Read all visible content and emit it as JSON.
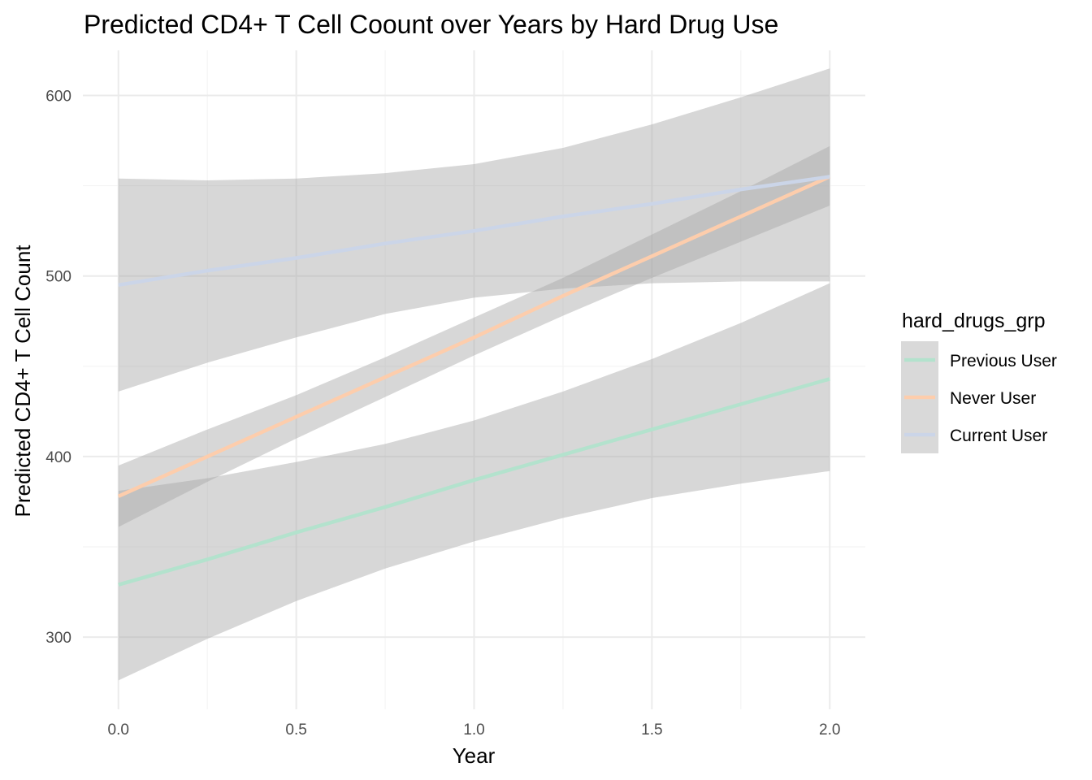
{
  "chart_data": {
    "type": "line",
    "title": "Predicted CD4+ T Cell Coount over Years by Hard Drug Use",
    "xlabel": "Year",
    "ylabel": "Predicted CD4+ T Cell Count",
    "xlim": [
      -0.1,
      2.1
    ],
    "ylim": [
      260,
      625
    ],
    "x_ticks": [
      0.0,
      0.5,
      1.0,
      1.5,
      2.0
    ],
    "x_tick_labels": [
      "0.0",
      "0.5",
      "1.0",
      "1.5",
      "2.0"
    ],
    "y_ticks": [
      300,
      400,
      500,
      600
    ],
    "y_tick_labels": [
      "300",
      "400",
      "500",
      "600"
    ],
    "grid": true,
    "legend": {
      "title": "hard_drugs_grp",
      "position": "right"
    },
    "x": [
      0,
      0.25,
      0.5,
      0.75,
      1.0,
      1.25,
      1.5,
      1.75,
      2.0
    ],
    "series": [
      {
        "name": "Previous User",
        "color": "#b3e2cd",
        "values": [
          329,
          343,
          358,
          372,
          387,
          401,
          415,
          429,
          443
        ],
        "lower": [
          276,
          299,
          320,
          338,
          353,
          366,
          377,
          385,
          392
        ],
        "upper": [
          381,
          388,
          397,
          407,
          420,
          436,
          454,
          474,
          496
        ]
      },
      {
        "name": "Never User",
        "color": "#fdcdac",
        "values": [
          378,
          400,
          422,
          444,
          466,
          489,
          511,
          533,
          555
        ],
        "lower": [
          361,
          386,
          410,
          433,
          456,
          478,
          499,
          519,
          539
        ],
        "upper": [
          395,
          415,
          434,
          455,
          477,
          499,
          523,
          547,
          572
        ]
      },
      {
        "name": "Current User",
        "color": "#cbd5e8",
        "values": [
          495,
          503,
          510,
          518,
          525,
          533,
          540,
          548,
          555
        ],
        "lower": [
          436,
          452,
          466,
          479,
          488,
          493,
          496,
          497,
          497
        ],
        "upper": [
          554,
          553,
          554,
          557,
          562,
          571,
          584,
          599,
          615
        ]
      }
    ]
  }
}
